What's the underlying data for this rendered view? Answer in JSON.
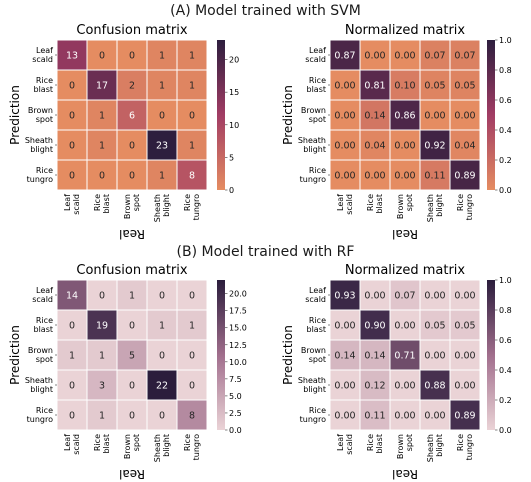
{
  "sections": [
    {
      "title": "(A) Model trained with SVM"
    },
    {
      "title": "(B) Model trained with RF"
    }
  ],
  "row_labels": [
    [
      "Leaf",
      "scald"
    ],
    [
      "Rice",
      "blast"
    ],
    [
      "Brown",
      "spot"
    ],
    [
      "Sheath",
      "blight"
    ],
    [
      "Rice",
      "tungro"
    ]
  ],
  "col_labels": [
    [
      "Leaf",
      "scald"
    ],
    [
      "Rice",
      "blast"
    ],
    [
      "Brown",
      "spot"
    ],
    [
      "Sheath",
      "blight"
    ],
    [
      "Rice",
      "tungro"
    ]
  ],
  "ylabel": "Prediction",
  "xlabel": "Real",
  "colors": {
    "svm_low": "#e58c61",
    "svm_mid": "#a13c64",
    "svm_high": "#2d1e3e",
    "rf_low": "#ead3d6",
    "rf_mid": "#a06e8c",
    "rf_high": "#2b1d3c"
  },
  "chart_data": [
    {
      "type": "heatmap",
      "title": "Confusion matrix",
      "palette": "svm",
      "vmin": 0,
      "vmax": 23,
      "colorbar_ticks": [
        "0",
        "5",
        "10",
        "15",
        "20"
      ],
      "colorbar_tick_values": [
        0,
        5,
        10,
        15,
        20
      ],
      "values": [
        [
          13,
          0,
          0,
          1,
          1
        ],
        [
          0,
          17,
          2,
          1,
          1
        ],
        [
          0,
          1,
          6,
          0,
          0
        ],
        [
          0,
          1,
          0,
          23,
          1
        ],
        [
          0,
          0,
          0,
          1,
          8
        ]
      ],
      "labels": [
        [
          "13",
          "0",
          "0",
          "1",
          "1"
        ],
        [
          "0",
          "17",
          "2",
          "1",
          "1"
        ],
        [
          "0",
          "1",
          "6",
          "0",
          "0"
        ],
        [
          "0",
          "1",
          "0",
          "23",
          "1"
        ],
        [
          "0",
          "0",
          "0",
          "1",
          "8"
        ]
      ]
    },
    {
      "type": "heatmap",
      "title": "Normalized matrix",
      "palette": "svm",
      "vmin": 0,
      "vmax": 1,
      "colorbar_ticks": [
        "0.0",
        "0.2",
        "0.4",
        "0.6",
        "0.8",
        "1.0"
      ],
      "colorbar_tick_values": [
        0,
        0.2,
        0.4,
        0.6,
        0.8,
        1.0
      ],
      "values": [
        [
          0.87,
          0,
          0,
          0.07,
          0.07
        ],
        [
          0,
          0.81,
          0.1,
          0.05,
          0.05
        ],
        [
          0,
          0.14,
          0.86,
          0,
          0
        ],
        [
          0,
          0.04,
          0,
          0.92,
          0.04
        ],
        [
          0,
          0,
          0,
          0.11,
          0.89
        ]
      ],
      "labels": [
        [
          "0.87",
          "0.00",
          "0.00",
          "0.07",
          "0.07"
        ],
        [
          "0.00",
          "0.81",
          "0.10",
          "0.05",
          "0.05"
        ],
        [
          "0.00",
          "0.14",
          "0.86",
          "0.00",
          "0.00"
        ],
        [
          "0.00",
          "0.04",
          "0.00",
          "0.92",
          "0.04"
        ],
        [
          "0.00",
          "0.00",
          "0.00",
          "0.11",
          "0.89"
        ]
      ]
    },
    {
      "type": "heatmap",
      "title": "Confusion matrix",
      "palette": "rf",
      "vmin": 0,
      "vmax": 22,
      "colorbar_ticks": [
        "0.0",
        "2.5",
        "5.0",
        "7.5",
        "10.0",
        "12.5",
        "15.0",
        "17.5",
        "20.0"
      ],
      "colorbar_tick_values": [
        0,
        2.5,
        5,
        7.5,
        10,
        12.5,
        15,
        17.5,
        20
      ],
      "values": [
        [
          14,
          0,
          1,
          0,
          0
        ],
        [
          0,
          19,
          0,
          1,
          1
        ],
        [
          1,
          1,
          5,
          0,
          0
        ],
        [
          0,
          3,
          0,
          22,
          0
        ],
        [
          0,
          1,
          0,
          0,
          8
        ]
      ],
      "labels": [
        [
          "14",
          "0",
          "1",
          "0",
          "0"
        ],
        [
          "0",
          "19",
          "0",
          "1",
          "1"
        ],
        [
          "1",
          "1",
          "5",
          "0",
          "0"
        ],
        [
          "0",
          "3",
          "0",
          "22",
          "0"
        ],
        [
          "0",
          "1",
          "0",
          "0",
          "8"
        ]
      ]
    },
    {
      "type": "heatmap",
      "title": "Normalized matrix",
      "palette": "rf",
      "vmin": 0,
      "vmax": 1,
      "colorbar_ticks": [
        "0.0",
        "0.2",
        "0.4",
        "0.6",
        "0.8",
        "1.0"
      ],
      "colorbar_tick_values": [
        0,
        0.2,
        0.4,
        0.6,
        0.8,
        1.0
      ],
      "values": [
        [
          0.93,
          0,
          0.07,
          0,
          0
        ],
        [
          0,
          0.9,
          0,
          0.05,
          0.05
        ],
        [
          0.14,
          0.14,
          0.71,
          0,
          0
        ],
        [
          0,
          0.12,
          0,
          0.88,
          0
        ],
        [
          0,
          0.11,
          0,
          0,
          0.89
        ]
      ],
      "labels": [
        [
          "0.93",
          "0.00",
          "0.07",
          "0.00",
          "0.00"
        ],
        [
          "0.00",
          "0.90",
          "0.00",
          "0.05",
          "0.05"
        ],
        [
          "0.14",
          "0.14",
          "0.71",
          "0.00",
          "0.00"
        ],
        [
          "0.00",
          "0.12",
          "0.00",
          "0.88",
          "0.00"
        ],
        [
          "0.00",
          "0.11",
          "0.00",
          "0.00",
          "0.89"
        ]
      ]
    }
  ]
}
